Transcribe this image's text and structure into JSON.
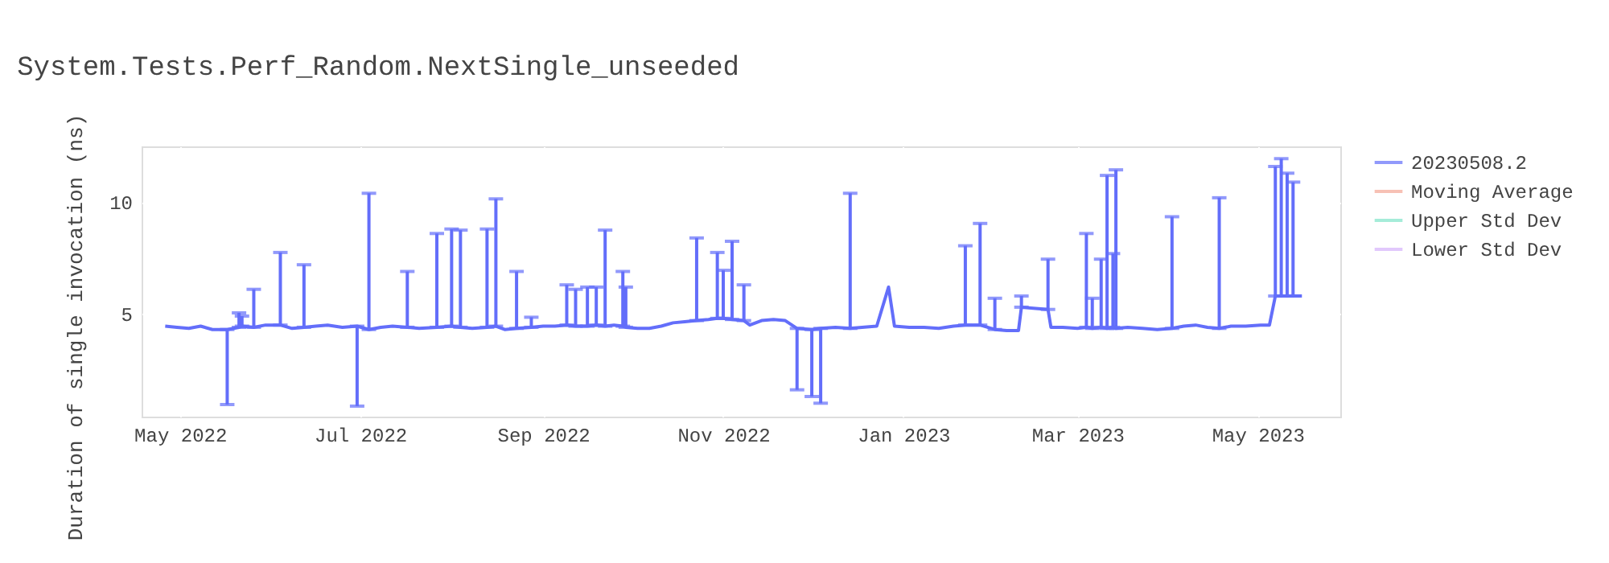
{
  "chart_data": {
    "type": "line",
    "title": "System.Tests.Perf_Random.NextSingle_unseeded",
    "ylabel": "Duration of single invocation (ns)",
    "x": [
      "2022-04-26",
      "2022-04-30",
      "2022-05-04",
      "2022-05-08",
      "2022-05-12",
      "2022-05-17",
      "2022-05-21",
      "2022-05-22",
      "2022-05-26",
      "2022-05-30",
      "2022-06-04",
      "2022-06-08",
      "2022-06-12",
      "2022-06-16",
      "2022-06-20",
      "2022-06-25",
      "2022-06-30",
      "2022-07-04",
      "2022-07-08",
      "2022-07-12",
      "2022-07-17",
      "2022-07-21",
      "2022-07-27",
      "2022-08-01",
      "2022-08-04",
      "2022-08-08",
      "2022-08-13",
      "2022-08-16",
      "2022-08-19",
      "2022-08-23",
      "2022-08-28",
      "2022-09-01",
      "2022-09-05",
      "2022-09-09",
      "2022-09-12",
      "2022-09-16",
      "2022-09-19",
      "2022-09-22",
      "2022-09-25",
      "2022-09-28",
      "2022-09-29",
      "2022-10-03",
      "2022-10-07",
      "2022-10-11",
      "2022-10-15",
      "2022-10-19",
      "2022-10-23",
      "2022-10-27",
      "2022-10-30",
      "2022-11-01",
      "2022-11-04",
      "2022-11-08",
      "2022-11-10",
      "2022-11-14",
      "2022-11-18",
      "2022-11-22",
      "2022-11-26",
      "2022-12-01",
      "2022-12-04",
      "2022-12-09",
      "2022-12-14",
      "2022-12-18",
      "2022-12-23",
      "2022-12-27",
      "2022-12-29",
      "2023-01-03",
      "2023-01-08",
      "2023-01-13",
      "2023-01-18",
      "2023-01-22",
      "2023-01-27",
      "2023-02-01",
      "2023-02-05",
      "2023-02-09",
      "2023-02-10",
      "2023-02-14",
      "2023-02-19",
      "2023-02-20",
      "2023-02-24",
      "2023-03-01",
      "2023-03-04",
      "2023-03-06",
      "2023-03-09",
      "2023-03-11",
      "2023-03-13",
      "2023-03-14",
      "2023-03-18",
      "2023-03-23",
      "2023-03-28",
      "2023-04-02",
      "2023-04-06",
      "2023-04-10",
      "2023-04-14",
      "2023-04-18",
      "2023-04-22",
      "2023-04-27",
      "2023-05-02",
      "2023-05-05",
      "2023-05-07",
      "2023-05-09",
      "2023-05-11",
      "2023-05-13",
      "2023-05-16"
    ],
    "series": [
      {
        "name": "20230508.2",
        "color": "#636efa",
        "values": [
          4.45,
          4.4,
          4.35,
          4.45,
          4.3,
          4.3,
          4.4,
          4.45,
          4.4,
          4.5,
          4.5,
          4.35,
          4.4,
          4.45,
          4.5,
          4.4,
          4.45,
          4.3,
          4.4,
          4.45,
          4.4,
          4.35,
          4.4,
          4.45,
          4.4,
          4.35,
          4.4,
          4.45,
          4.3,
          4.35,
          4.4,
          4.45,
          4.45,
          4.5,
          4.45,
          4.45,
          4.5,
          4.45,
          4.5,
          4.45,
          4.4,
          4.35,
          4.35,
          4.45,
          4.6,
          4.65,
          4.7,
          4.75,
          4.8,
          4.8,
          4.75,
          4.7,
          4.5,
          4.7,
          4.75,
          4.7,
          4.35,
          4.3,
          4.35,
          4.4,
          4.35,
          4.4,
          4.45,
          6.2,
          4.45,
          4.4,
          4.4,
          4.35,
          4.45,
          4.5,
          4.5,
          4.3,
          4.25,
          4.25,
          5.3,
          5.25,
          5.2,
          4.4,
          4.4,
          4.35,
          4.4,
          4.35,
          4.4,
          4.35,
          4.4,
          4.35,
          4.4,
          4.35,
          4.3,
          4.35,
          4.45,
          4.5,
          4.4,
          4.35,
          4.45,
          4.45,
          4.5,
          4.5,
          5.8,
          5.8,
          5.8,
          5.8,
          5.8
        ],
        "errors": [
          null,
          null,
          null,
          null,
          null,
          [
            0.94,
            4.3
          ],
          [
            4.4,
            5.05
          ],
          [
            4.45,
            4.9
          ],
          [
            4.4,
            6.1
          ],
          null,
          [
            4.5,
            7.75
          ],
          null,
          [
            4.4,
            7.2
          ],
          null,
          null,
          null,
          [
            0.87,
            4.45
          ],
          [
            4.3,
            10.4
          ],
          null,
          null,
          [
            4.4,
            6.9
          ],
          null,
          [
            4.4,
            8.6
          ],
          [
            4.45,
            8.8
          ],
          [
            4.4,
            8.75
          ],
          null,
          [
            4.4,
            8.8
          ],
          [
            4.45,
            10.15
          ],
          null,
          [
            4.35,
            6.9
          ],
          [
            4.4,
            4.85
          ],
          null,
          null,
          [
            4.5,
            6.3
          ],
          [
            4.45,
            6.1
          ],
          [
            4.45,
            6.2
          ],
          [
            4.5,
            6.2
          ],
          [
            4.45,
            8.75
          ],
          null,
          [
            4.45,
            6.9
          ],
          [
            4.4,
            6.2
          ],
          null,
          null,
          null,
          null,
          null,
          [
            4.7,
            8.4
          ],
          null,
          [
            4.8,
            7.75
          ],
          [
            4.8,
            6.95
          ],
          [
            4.75,
            8.25
          ],
          [
            4.7,
            6.3
          ],
          null,
          null,
          null,
          null,
          [
            1.6,
            4.35
          ],
          [
            1.3,
            4.3
          ],
          [
            1.0,
            4.35
          ],
          null,
          [
            4.35,
            10.4
          ],
          null,
          null,
          null,
          null,
          null,
          null,
          null,
          null,
          [
            4.5,
            8.05
          ],
          [
            4.5,
            9.05
          ],
          [
            4.3,
            5.7
          ],
          null,
          null,
          [
            5.3,
            5.8
          ],
          null,
          [
            5.2,
            7.45
          ],
          null,
          null,
          null,
          [
            4.4,
            8.6
          ],
          [
            4.35,
            5.7
          ],
          [
            4.4,
            7.45
          ],
          [
            4.35,
            11.2
          ],
          [
            4.4,
            7.7
          ],
          [
            4.35,
            11.45
          ],
          null,
          null,
          null,
          [
            4.35,
            9.35
          ],
          null,
          null,
          null,
          [
            4.35,
            10.2
          ],
          null,
          null,
          null,
          null,
          [
            5.8,
            11.6
          ],
          [
            5.8,
            11.95
          ],
          [
            5.8,
            11.3
          ],
          [
            5.8,
            10.9
          ],
          null
        ]
      },
      {
        "name": "Moving Average",
        "color": "#f4a797",
        "values": [
          null,
          null,
          null,
          null,
          null,
          null,
          null,
          null,
          null,
          null,
          null,
          null,
          null,
          null,
          null,
          null,
          null,
          null,
          null,
          null,
          null,
          null,
          null,
          null,
          null,
          null,
          null,
          null,
          null,
          null,
          null,
          null,
          null,
          null,
          null,
          null,
          null,
          null,
          null,
          null,
          null,
          null,
          null,
          null,
          null,
          null,
          null,
          null,
          null,
          null,
          null,
          null,
          null,
          null,
          null,
          null,
          null,
          null,
          null,
          null,
          null,
          null,
          null,
          null,
          null,
          null,
          null,
          null,
          null,
          null,
          null,
          null,
          null,
          null,
          null,
          null,
          null,
          null,
          null,
          null,
          null,
          null,
          null,
          null,
          null,
          null,
          null,
          null,
          null,
          null,
          null,
          null,
          null,
          null,
          null,
          null,
          null,
          null,
          null,
          null,
          null,
          null,
          null
        ]
      },
      {
        "name": "Upper Std Dev",
        "color": "#7fe5ca",
        "values": [
          null,
          null,
          null,
          null,
          null,
          null,
          null,
          null,
          null,
          null,
          null,
          null,
          null,
          null,
          null,
          null,
          null,
          null,
          null,
          null,
          null,
          null,
          null,
          null,
          null,
          null,
          null,
          null,
          null,
          null,
          null,
          null,
          null,
          null,
          null,
          null,
          null,
          null,
          null,
          null,
          null,
          null,
          null,
          null,
          null,
          null,
          null,
          null,
          null,
          null,
          null,
          null,
          null,
          null,
          null,
          null,
          null,
          null,
          null,
          null,
          null,
          null,
          null,
          null,
          null,
          null,
          null,
          null,
          null,
          null,
          null,
          null,
          null,
          null,
          null,
          null,
          null,
          null,
          null,
          null,
          null,
          null,
          null,
          null,
          null,
          null,
          null,
          null,
          null,
          null,
          null,
          null,
          null,
          null,
          null,
          null,
          null,
          null,
          null,
          null,
          null,
          null,
          null
        ]
      },
      {
        "name": "Lower Std Dev",
        "color": "#d5b1fc",
        "values": [
          null,
          null,
          null,
          null,
          null,
          null,
          null,
          null,
          null,
          null,
          null,
          null,
          null,
          null,
          null,
          null,
          null,
          null,
          null,
          null,
          null,
          null,
          null,
          null,
          null,
          null,
          null,
          null,
          null,
          null,
          null,
          null,
          null,
          null,
          null,
          null,
          null,
          null,
          null,
          null,
          null,
          null,
          null,
          null,
          null,
          null,
          null,
          null,
          null,
          null,
          null,
          null,
          null,
          null,
          null,
          null,
          null,
          null,
          null,
          null,
          null,
          null,
          null,
          null,
          null,
          null,
          null,
          null,
          null,
          null,
          null,
          null,
          null,
          null,
          null,
          null,
          null,
          null,
          null,
          null,
          null,
          null,
          null,
          null,
          null,
          null,
          null,
          null,
          null,
          null,
          null,
          null,
          null,
          null,
          null,
          null,
          null,
          null,
          null,
          null,
          null,
          null,
          null
        ]
      }
    ],
    "xlim": [
      "2022-04-18",
      "2023-05-29"
    ],
    "xticks": [
      {
        "value": "2022-05-01",
        "label": "May 2022"
      },
      {
        "value": "2022-07-01",
        "label": "Jul 2022"
      },
      {
        "value": "2022-09-01",
        "label": "Sep 2022"
      },
      {
        "value": "2022-11-01",
        "label": "Nov 2022"
      },
      {
        "value": "2023-01-01",
        "label": "Jan 2023"
      },
      {
        "value": "2023-03-01",
        "label": "Mar 2023"
      },
      {
        "value": "2023-05-01",
        "label": "May 2023"
      }
    ],
    "ylim": [
      0.4,
      12.5
    ],
    "yticks": [
      5,
      10
    ],
    "grid": true,
    "legend": "top right",
    "marker": "none",
    "line_style": "solid"
  }
}
